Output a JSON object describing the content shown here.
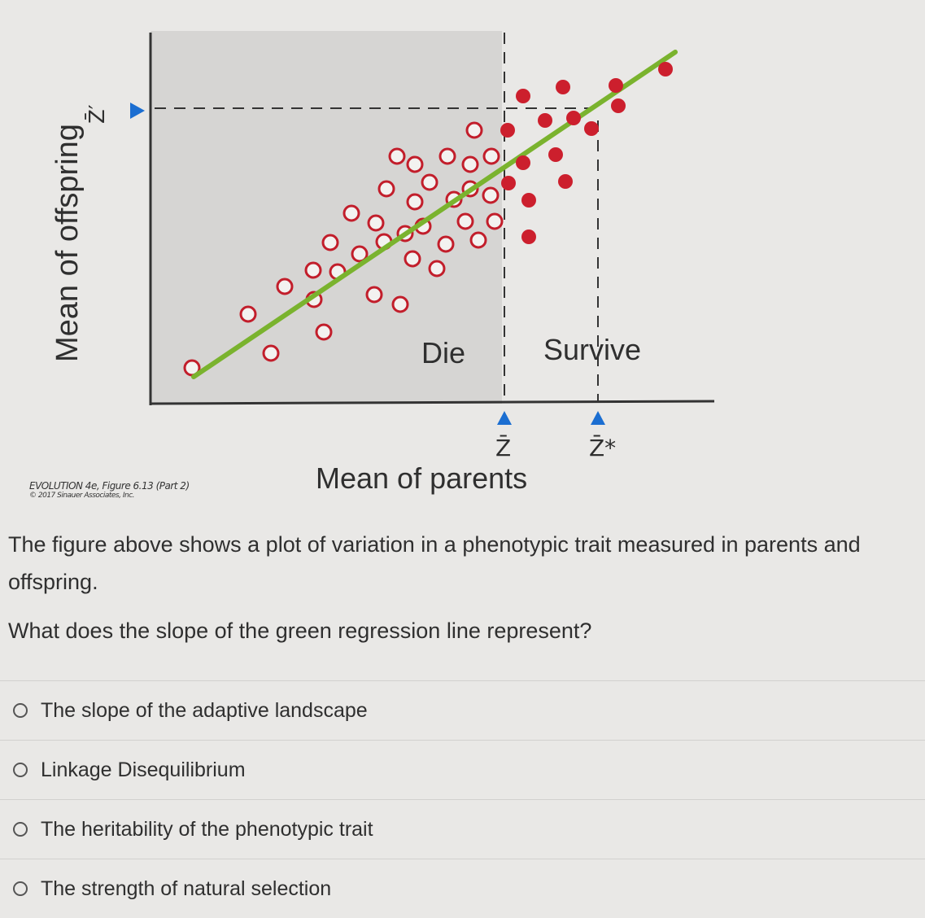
{
  "figure": {
    "y_axis_label": "Mean of offspring",
    "x_axis_label": "Mean of parents",
    "zone_die": "Die",
    "zone_survive": "Survive",
    "marker_zbar": "Z̄",
    "marker_zstar": "Z̄*",
    "marker_zprime": "Z̄′",
    "credit_line1": "EVOLUTION 4e, Figure 6.13 (Part 2)",
    "credit_line2": "© 2017 Sinauer Associates, Inc.",
    "colors": {
      "regression_line": "#7ab32e",
      "survivor_point": "#cc1f2d",
      "die_region": "#d6d5d3",
      "axis_marker": "#1b6ed1"
    }
  },
  "question": {
    "intro": "The figure above shows a plot of variation in a phenotypic trait measured in parents and offspring.",
    "prompt": "What does the slope of the green regression line represent?"
  },
  "options": [
    {
      "label": "The slope of the adaptive landscape"
    },
    {
      "label": "Linkage Disequilibrium"
    },
    {
      "label": "The heritability of the phenotypic trait"
    },
    {
      "label": "The strength of natural selection"
    }
  ]
}
